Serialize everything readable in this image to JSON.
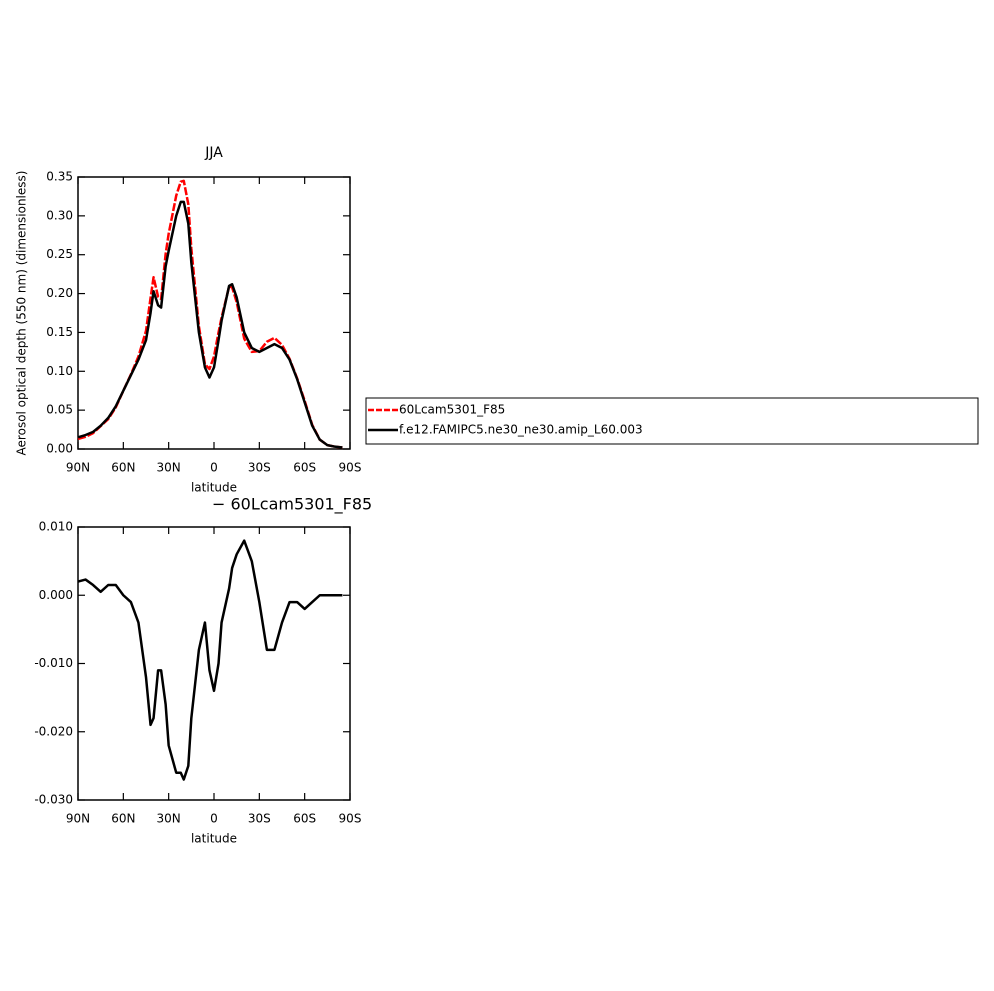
{
  "chart_data": [
    {
      "type": "line",
      "title": "JJA",
      "y_label": "Aerosol optical depth (550 nm) (dimensionless)",
      "x_label": "latitude",
      "x": [
        90,
        85,
        80,
        75,
        70,
        65,
        60,
        55,
        50,
        45,
        42,
        40,
        37,
        35,
        32,
        30,
        25,
        22,
        20,
        17,
        15,
        10,
        6,
        3,
        0,
        -3,
        -5,
        -10,
        -12,
        -15,
        -20,
        -25,
        -30,
        -35,
        -40,
        -45,
        -50,
        -55,
        -60,
        -65,
        -70,
        -75,
        -80,
        -85
      ],
      "xlim": [
        90,
        -90
      ],
      "xticks": [
        {
          "value": 90,
          "label": "90N"
        },
        {
          "value": 60,
          "label": "60N"
        },
        {
          "value": 30,
          "label": "30N"
        },
        0,
        {
          "value": -30,
          "label": "30S"
        },
        {
          "value": -60,
          "label": "60S"
        },
        {
          "value": -90,
          "label": "90S"
        }
      ],
      "ylim": [
        0,
        0.35
      ],
      "yticks": [
        {
          "value": 0,
          "label": "0.00"
        },
        {
          "value": 0.05,
          "label": "0.05"
        },
        {
          "value": 0.1,
          "label": "0.10"
        },
        {
          "value": 0.15,
          "label": "0.15"
        },
        {
          "value": 0.2,
          "label": "0.20"
        },
        {
          "value": 0.25,
          "label": "0.25"
        },
        {
          "value": 0.3,
          "label": "0.30"
        },
        {
          "value": 0.35,
          "label": "0.35"
        }
      ],
      "legend": "right",
      "series": [
        {
          "name": "60Lcam5301_F85",
          "color": "#ff0000",
          "dashed": true,
          "values": [
            0.013,
            0.0157,
            0.0205,
            0.0295,
            0.0385,
            0.0535,
            0.075,
            0.096,
            0.119,
            0.152,
            0.194,
            0.221,
            0.196,
            0.193,
            0.251,
            0.277,
            0.326,
            0.344,
            0.345,
            0.315,
            0.258,
            0.158,
            0.109,
            0.103,
            0.119,
            0.15,
            0.169,
            0.209,
            0.208,
            0.189,
            0.142,
            0.125,
            0.126,
            0.138,
            0.143,
            0.134,
            0.116,
            0.091,
            0.062,
            0.031,
            0.012,
            0.005,
            0.003,
            0.002
          ]
        },
        {
          "name": "f.e12.FAMIPC5.ne30_ne30.amip_L60.003",
          "color": "#000000",
          "dashed": false,
          "values": [
            0.015,
            0.018,
            0.022,
            0.03,
            0.04,
            0.055,
            0.075,
            0.095,
            0.115,
            0.14,
            0.175,
            0.203,
            0.185,
            0.182,
            0.235,
            0.255,
            0.3,
            0.318,
            0.318,
            0.29,
            0.24,
            0.15,
            0.105,
            0.092,
            0.105,
            0.14,
            0.165,
            0.21,
            0.212,
            0.195,
            0.15,
            0.13,
            0.125,
            0.13,
            0.135,
            0.13,
            0.115,
            0.09,
            0.06,
            0.03,
            0.012,
            0.005,
            0.003,
            0.002
          ]
        }
      ]
    },
    {
      "type": "line",
      "title": "− 60Lcam5301_F85",
      "x_label": "latitude",
      "x": [
        90,
        85,
        80,
        75,
        70,
        65,
        60,
        55,
        50,
        45,
        42,
        40,
        37,
        35,
        32,
        30,
        25,
        22,
        20,
        17,
        15,
        10,
        6,
        3,
        0,
        -3,
        -5,
        -10,
        -12,
        -15,
        -20,
        -25,
        -30,
        -35,
        -40,
        -45,
        -50,
        -55,
        -60,
        -65,
        -70,
        -75,
        -80,
        -85
      ],
      "xlim": [
        90,
        -90
      ],
      "xticks": [
        {
          "value": 90,
          "label": "90N"
        },
        {
          "value": 60,
          "label": "60N"
        },
        {
          "value": 30,
          "label": "30N"
        },
        0,
        {
          "value": -30,
          "label": "30S"
        },
        {
          "value": -60,
          "label": "60S"
        },
        {
          "value": -90,
          "label": "90S"
        }
      ],
      "ylim": [
        -0.03,
        0.01
      ],
      "yticks": [
        {
          "value": 0.01,
          "label": "0.010"
        },
        {
          "value": 0,
          "label": "0.000"
        },
        {
          "value": -0.01,
          "label": "-0.010"
        },
        {
          "value": -0.02,
          "label": "-0.020"
        },
        {
          "value": -0.03,
          "label": "-0.030"
        }
      ],
      "color": "#000000",
      "values": [
        0.002,
        0.0023,
        0.0015,
        0.0005,
        0.0015,
        0.0015,
        0,
        -0.001,
        -0.004,
        -0.012,
        -0.019,
        -0.018,
        -0.011,
        -0.011,
        -0.016,
        -0.022,
        -0.026,
        -0.026,
        -0.027,
        -0.025,
        -0.018,
        -0.008,
        -0.004,
        -0.011,
        -0.014,
        -0.01,
        -0.004,
        0.001,
        0.004,
        0.006,
        0.008,
        0.005,
        -0.001,
        -0.008,
        -0.008,
        -0.004,
        -0.001,
        -0.001,
        -0.002,
        -0.001,
        0,
        0,
        0,
        0
      ]
    }
  ]
}
